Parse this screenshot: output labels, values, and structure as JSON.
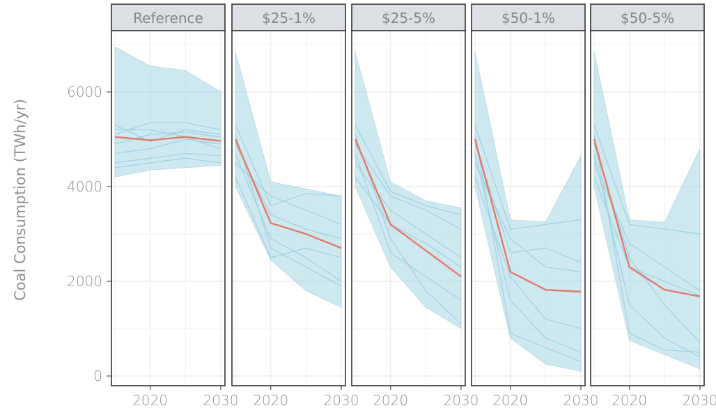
{
  "chart_data": {
    "type": "line",
    "ylabel": "Coal Consumption (TWh/yr)",
    "ylim": [
      0,
      7000
    ],
    "xlim": [
      2015,
      2030
    ],
    "y_ticks": [
      0,
      2000,
      4000,
      6000
    ],
    "x_ticks": [
      2020,
      2030
    ],
    "grid": true,
    "x": [
      2015,
      2020,
      2025,
      2030
    ],
    "colors": {
      "band_fill": "#add8e6",
      "band_edge": "#9fcfdf",
      "scenario_lines": "#9ccfdf",
      "mean_line": "#e07b6c",
      "strip_bg": "#dcdfe3",
      "grid": "#ececec",
      "frame": "#333333"
    },
    "panels": [
      {
        "label": "Reference",
        "band_upper": [
          6950,
          6550,
          6450,
          6000
        ],
        "band_lower": [
          4200,
          4350,
          4400,
          4450
        ],
        "scenarios": [
          [
            5300,
            4950,
            5200,
            5100
          ],
          [
            4700,
            4800,
            5000,
            4900
          ],
          [
            4500,
            4600,
            4700,
            4650
          ],
          [
            5100,
            5350,
            5350,
            5200
          ],
          [
            4400,
            4500,
            4600,
            4500
          ],
          [
            4900,
            5100,
            5150,
            5050
          ],
          [
            5200,
            5200,
            5050,
            4800
          ]
        ],
        "mean": [
          5050,
          4980,
          5050,
          4960
        ]
      },
      {
        "label": "$25-1%",
        "band_upper": [
          6850,
          4100,
          3950,
          3800
        ],
        "band_lower": [
          4000,
          2450,
          1800,
          1450
        ],
        "scenarios": [
          [
            5300,
            3600,
            3850,
            3800
          ],
          [
            4700,
            2900,
            2500,
            2000
          ],
          [
            4500,
            3800,
            3500,
            3200
          ],
          [
            5100,
            2700,
            2300,
            1900
          ],
          [
            4200,
            2500,
            2700,
            2500
          ],
          [
            4900,
            3400,
            3100,
            2900
          ]
        ],
        "mean": [
          5000,
          3230,
          3000,
          2700
        ]
      },
      {
        "label": "$25-5%",
        "band_upper": [
          6850,
          4100,
          3700,
          3550
        ],
        "band_lower": [
          4000,
          2300,
          1450,
          1000
        ],
        "scenarios": [
          [
            5300,
            3900,
            3600,
            3400
          ],
          [
            4700,
            2600,
            2100,
            1600
          ],
          [
            4500,
            3500,
            3000,
            2500
          ],
          [
            5100,
            2900,
            1800,
            1100
          ],
          [
            4200,
            3200,
            2800,
            2300
          ],
          [
            4900,
            3800,
            3500,
            3100
          ]
        ],
        "mean": [
          5000,
          3200,
          2650,
          2100
        ]
      },
      {
        "label": "$50-1%",
        "band_upper": [
          6850,
          3300,
          3250,
          4650
        ],
        "band_lower": [
          4000,
          800,
          250,
          100
        ],
        "scenarios": [
          [
            5300,
            3100,
            3200,
            3300
          ],
          [
            4700,
            1600,
            800,
            500
          ],
          [
            4500,
            2900,
            2300,
            2200
          ],
          [
            5100,
            900,
            600,
            300
          ],
          [
            4200,
            2100,
            1200,
            1000
          ],
          [
            4900,
            2600,
            2700,
            2400
          ]
        ],
        "mean": [
          5000,
          2200,
          1820,
          1780
        ]
      },
      {
        "label": "$50-5%",
        "band_upper": [
          6850,
          3300,
          3250,
          4800
        ],
        "band_lower": [
          4000,
          750,
          450,
          150
        ],
        "scenarios": [
          [
            5300,
            3200,
            3100,
            3000
          ],
          [
            4700,
            1500,
            800,
            400
          ],
          [
            4500,
            2800,
            2300,
            1800
          ],
          [
            5100,
            900,
            550,
            500
          ],
          [
            4200,
            2300,
            2000,
            1700
          ],
          [
            4900,
            2500,
            1500,
            700
          ]
        ],
        "mean": [
          5000,
          2300,
          1820,
          1680
        ]
      }
    ]
  }
}
